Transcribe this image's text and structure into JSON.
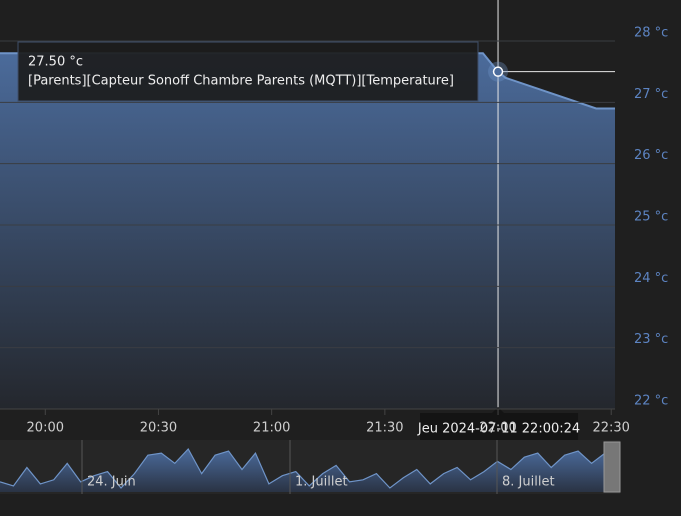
{
  "chart_data": {
    "type": "area",
    "x": [
      "19:48",
      "21:56",
      "22:00",
      "22:02",
      "22:26",
      "22:31"
    ],
    "series": [
      {
        "name": "[Parents][Capteur Sonoff Chambre Parents (MQTT)][Temperature]",
        "color": "#6f94c8",
        "values": [
          27.8,
          27.8,
          27.5,
          27.4,
          26.9,
          26.9
        ]
      }
    ],
    "xlim": [
      "19:48",
      "22:31"
    ],
    "xticks": [
      "20:00",
      "20:30",
      "21:00",
      "21:30",
      "22:00",
      "22:30"
    ],
    "ylim": [
      22,
      28
    ],
    "yticks": [
      {
        "value": 22,
        "label": "22 °c"
      },
      {
        "value": 23,
        "label": "23 °c"
      },
      {
        "value": 24,
        "label": "24 °c"
      },
      {
        "value": 25,
        "label": "25 °c"
      },
      {
        "value": 26,
        "label": "26 °c"
      },
      {
        "value": 27,
        "label": "27 °c"
      },
      {
        "value": 28,
        "label": "28 °c"
      }
    ],
    "grid": true,
    "tooltip": {
      "value_label": "27.50 °c",
      "point_index": 2
    },
    "crosshair_label": "Jeu 2024-07-11 22:00:24",
    "navigator": {
      "labels": [
        "24. Juin",
        "1. Juillet",
        "8. Juillet"
      ],
      "values": [
        25.5,
        25.3,
        26.2,
        25.4,
        25.6,
        26.4,
        25.5,
        25.8,
        26.0,
        25.2,
        25.9,
        26.8,
        26.9,
        26.4,
        27.1,
        25.9,
        26.8,
        27.0,
        26.1,
        26.9,
        25.4,
        25.8,
        26.0,
        25.3,
        25.9,
        26.3,
        25.5,
        25.6,
        25.9,
        25.2,
        25.7,
        26.1,
        25.4,
        25.9,
        26.2,
        25.6,
        26.0,
        26.5,
        26.1,
        26.7,
        26.9,
        26.2,
        26.8,
        27.0,
        26.4,
        26.9
      ]
    }
  }
}
